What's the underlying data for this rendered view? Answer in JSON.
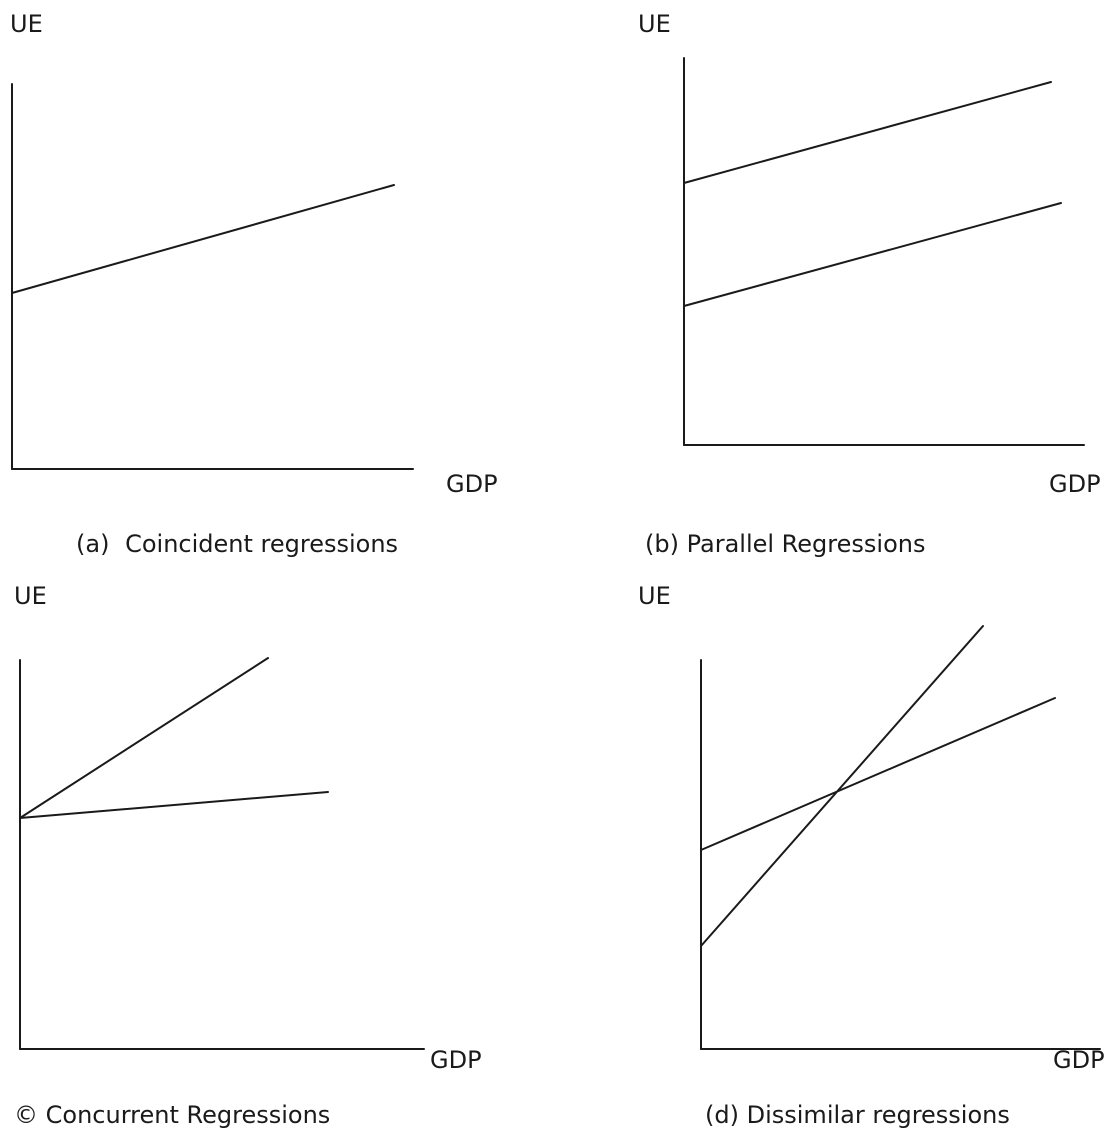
{
  "panels": [
    {
      "y_label": "UE",
      "x_label": "GDP",
      "caption_marker": "(a)",
      "caption_text": "Coincident regressions"
    },
    {
      "y_label": "UE",
      "x_label": "GDP",
      "caption_marker": "(b)",
      "caption_text": "Parallel Regressions"
    },
    {
      "y_label": "UE",
      "x_label": "GDP",
      "caption_marker": "©",
      "caption_text": "Concurrent Regressions"
    },
    {
      "y_label": "UE",
      "x_label": "GDP",
      "caption_marker": "(d)",
      "caption_text": "Dissimilar regressions"
    }
  ]
}
